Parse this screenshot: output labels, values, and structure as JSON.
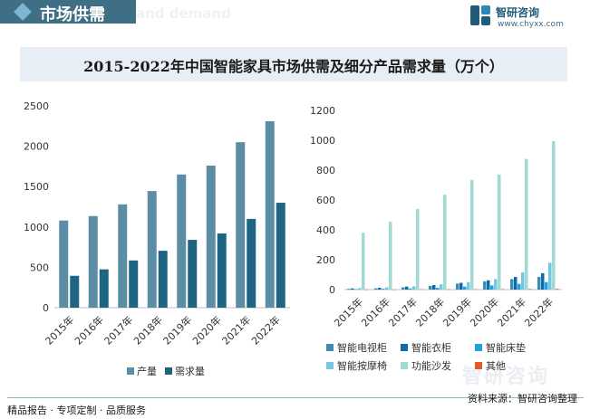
{
  "header": {
    "title": "市场供需",
    "watermark": "and demand"
  },
  "logo": {
    "name": "智研咨询",
    "url": "www.chyxx.com"
  },
  "colors": {
    "header_bg": "#3f6f85",
    "title_band": "#e8eef5"
  },
  "chart_data": [
    {
      "type": "bar",
      "title": "2015-2022年中国智能家具市场供需及细分产品需求量（万个）",
      "categories": [
        "2015年",
        "2016年",
        "2017年",
        "2018年",
        "2019年",
        "2020年",
        "2021年",
        "2022年"
      ],
      "ylim": [
        0,
        2500
      ],
      "yticks": [
        0,
        500,
        1000,
        1500,
        2000,
        2500
      ],
      "legend_position": "bottom",
      "grid": false,
      "series": [
        {
          "name": "产量",
          "color": "#5b8ea4",
          "values": [
            1080,
            1135,
            1280,
            1445,
            1650,
            1760,
            2050,
            2310
          ]
        },
        {
          "name": "需求量",
          "color": "#1e6584",
          "values": [
            395,
            475,
            585,
            705,
            840,
            920,
            1100,
            1300
          ]
        }
      ]
    },
    {
      "type": "bar",
      "categories": [
        "2015年",
        "2016年",
        "2017年",
        "2018年",
        "2019年",
        "2020年",
        "2021年",
        "2022年"
      ],
      "ylim": [
        0,
        1200
      ],
      "yticks": [
        0,
        200,
        400,
        600,
        800,
        1000,
        1200
      ],
      "legend_position": "bottom",
      "grid": false,
      "series": [
        {
          "name": "智能电视柜",
          "color": "#3d8bb1",
          "values": [
            5,
            8,
            15,
            25,
            40,
            55,
            70,
            85
          ]
        },
        {
          "name": "智能衣柜",
          "color": "#0e6aa8",
          "values": [
            8,
            12,
            20,
            30,
            45,
            62,
            85,
            110
          ]
        },
        {
          "name": "智能床垫",
          "color": "#1fa3d8",
          "values": [
            3,
            5,
            8,
            12,
            20,
            28,
            38,
            50
          ]
        },
        {
          "name": "智能按摩椅",
          "color": "#73c7e4",
          "values": [
            10,
            15,
            22,
            35,
            50,
            70,
            115,
            180
          ]
        },
        {
          "name": "功能沙发",
          "color": "#9fdad3",
          "values": [
            380,
            455,
            540,
            635,
            735,
            770,
            875,
            995
          ]
        },
        {
          "name": "其他",
          "color": "#e8572a",
          "values": [
            1,
            1,
            2,
            2,
            3,
            3,
            4,
            5
          ]
        }
      ]
    }
  ],
  "footer": {
    "left": "精品报告 · 专项定制 · 品质服务",
    "right": "资料来源：智研咨询整理"
  },
  "watermark_text": "智研咨询"
}
